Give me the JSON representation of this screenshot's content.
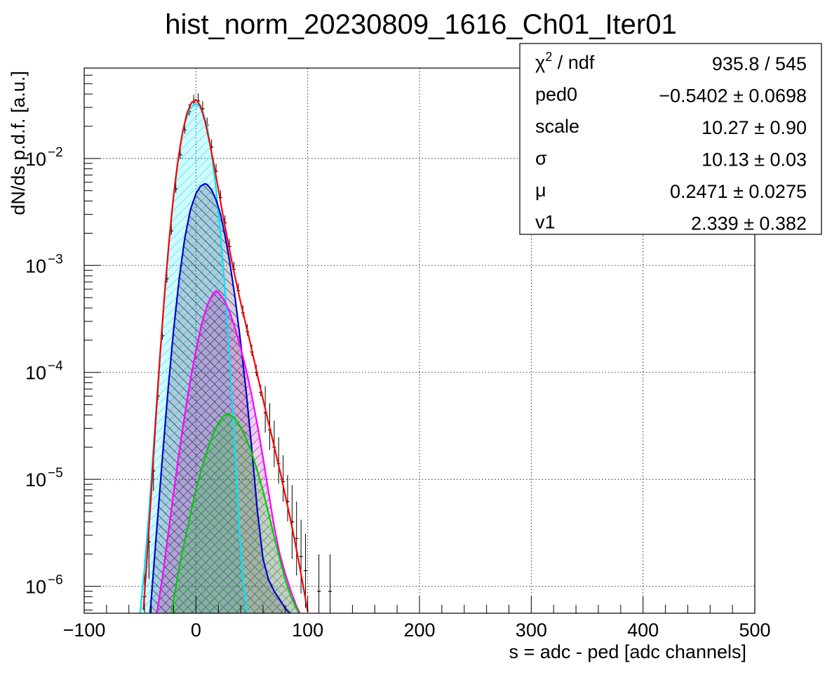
{
  "chart_data": {
    "type": "histogram",
    "title": "hist_norm_20230809_1616_Ch01_Iter01",
    "xlabel": "s = adc - ped [adc channels]",
    "ylabel": "dN/ds p.d.f. [a.u.]",
    "xlim": [
      -100,
      500
    ],
    "ylim": [
      5.6e-07,
      0.07
    ],
    "y_scale": "log",
    "grid": true,
    "x_ticks": [
      {
        "value": -100,
        "label": "−100"
      },
      {
        "value": 0,
        "label": "0"
      },
      {
        "value": 100,
        "label": "100"
      },
      {
        "value": 200,
        "label": "200"
      },
      {
        "value": 300,
        "label": "300"
      },
      {
        "value": 400,
        "label": "400"
      },
      {
        "value": 500,
        "label": "500"
      }
    ],
    "y_ticks": [
      {
        "value": 1e-06,
        "base": "10",
        "exp": "−6"
      },
      {
        "value": 1e-05,
        "base": "10",
        "exp": "−5"
      },
      {
        "value": 0.0001,
        "base": "10",
        "exp": "−4"
      },
      {
        "value": 0.001,
        "base": "10",
        "exp": "−3"
      },
      {
        "value": 0.01,
        "base": "10",
        "exp": "−2"
      }
    ],
    "histogram": {
      "color": "#000000",
      "x": [
        -46,
        -42,
        -38,
        -34,
        -30,
        -26,
        -22,
        -18,
        -14,
        -10,
        -6,
        -2,
        2,
        6,
        10,
        14,
        18,
        22,
        26,
        30,
        34,
        38,
        42,
        46,
        50,
        54,
        58,
        62,
        66,
        70,
        74,
        78,
        82,
        86,
        90,
        94,
        98,
        110,
        120
      ],
      "y": [
        8e-07,
        2.6e-06,
        1.2e-05,
        6e-05,
        0.00022,
        0.00075,
        0.0021,
        0.0052,
        0.0108,
        0.0185,
        0.0275,
        0.0335,
        0.0345,
        0.0292,
        0.0205,
        0.0128,
        0.0076,
        0.0043,
        0.0025,
        0.0015,
        0.00092,
        0.00058,
        0.00036,
        0.00024,
        0.000155,
        0.0001,
        6.5e-05,
        4.2e-05,
        2.9e-05,
        2e-05,
        1.4e-05,
        9.5e-06,
        6.2e-06,
        4e-06,
        2.8e-06,
        1.9e-06,
        1.4e-06,
        9e-07,
        9e-07
      ]
    },
    "series": [
      {
        "component": "total",
        "color": "#ff0000",
        "x": [
          -47,
          -44,
          -40,
          -36,
          -32,
          -28,
          -24,
          -20,
          -16,
          -12,
          -8,
          -4,
          0,
          4,
          8,
          12,
          16,
          20,
          24,
          28,
          32,
          36,
          40,
          44,
          48,
          52,
          56,
          60,
          64,
          68,
          72,
          76,
          80,
          84,
          88,
          92,
          96,
          100
        ],
        "y": [
          6e-07,
          1.7e-06,
          7.5e-06,
          3.5e-05,
          0.00015,
          0.00055,
          0.0017,
          0.0045,
          0.0097,
          0.0175,
          0.0265,
          0.0332,
          0.0355,
          0.031,
          0.0225,
          0.0145,
          0.0088,
          0.0052,
          0.003,
          0.0018,
          0.0011,
          0.0007,
          0.00045,
          0.0003,
          0.0002,
          0.00013,
          8.5e-05,
          5.6e-05,
          3.7e-05,
          2.5e-05,
          1.65e-05,
          1.1e-05,
          7e-06,
          4.5e-06,
          2.8e-06,
          1.7e-06,
          1e-06,
          5.8e-07
        ]
      },
      {
        "component": "pedestal",
        "color": "#00e5ff",
        "fill": "#00e5ff",
        "hatch": true,
        "x": [
          -50,
          -46,
          -42,
          -38,
          -34,
          -30,
          -26,
          -22,
          -18,
          -14,
          -10,
          -6,
          -2,
          0,
          2,
          6,
          10,
          14,
          18,
          22,
          26,
          30,
          34,
          38,
          42,
          46
        ],
        "y": [
          5.6e-07,
          1.5e-06,
          5e-06,
          2e-05,
          8e-05,
          0.00029,
          0.001,
          0.0029,
          0.0068,
          0.0135,
          0.0215,
          0.0285,
          0.0318,
          0.032,
          0.0316,
          0.0276,
          0.0198,
          0.0112,
          0.0052,
          0.00195,
          0.00059,
          0.000145,
          2.9e-05,
          4.6e-06,
          1.2e-06,
          5.6e-07
        ]
      },
      {
        "component": "first peak",
        "color": "#0000cc",
        "fill": "#000033",
        "hatch": true,
        "x": [
          -41,
          -38,
          -35,
          -30,
          -25,
          -20,
          -15,
          -10,
          -5,
          0,
          4,
          8,
          10,
          14,
          18,
          22,
          26,
          30,
          35,
          40,
          45,
          50,
          55,
          60,
          65,
          70,
          75,
          80,
          84
        ],
        "y": [
          5.6e-07,
          1.4e-06,
          3.5e-06,
          1.6e-05,
          6.8e-05,
          0.00025,
          0.00075,
          0.0018,
          0.0033,
          0.0047,
          0.0055,
          0.0058,
          0.0057,
          0.0051,
          0.0041,
          0.003,
          0.0019,
          0.00112,
          0.0005,
          0.00019,
          6.5e-05,
          1.9e-05,
          5e-06,
          1.8e-06,
          1.15e-06,
          9e-07,
          7.5e-07,
          6.2e-07,
          5.6e-07
        ]
      },
      {
        "component": "second peak",
        "color": "#ff00ff",
        "fill": "#990099",
        "hatch": true,
        "x": [
          -35,
          -30,
          -25,
          -20,
          -15,
          -10,
          -5,
          0,
          5,
          10,
          15,
          18,
          20,
          25,
          30,
          35,
          40,
          45,
          50,
          55,
          60,
          65,
          70,
          75,
          80,
          85,
          90,
          93
        ],
        "y": [
          5.6e-07,
          1.2e-06,
          3e-06,
          7.5e-06,
          1.8e-05,
          4e-05,
          8.5e-05,
          0.00016,
          0.00028,
          0.00042,
          0.00054,
          0.00058,
          0.00056,
          0.00048,
          0.00037,
          0.00026,
          0.00017,
          0.000105,
          6e-05,
          3.2e-05,
          1.6e-05,
          7.5e-06,
          3.6e-06,
          2e-06,
          1.3e-06,
          9e-07,
          6.5e-07,
          5.6e-07
        ]
      },
      {
        "component": "third peak",
        "color": "#00cc00",
        "fill": "#00cc00",
        "hatch": true,
        "x": [
          -22,
          -15,
          -10,
          -5,
          0,
          5,
          10,
          15,
          20,
          25,
          28,
          30,
          35,
          40,
          45,
          50,
          55,
          60,
          65,
          70,
          75,
          80,
          85,
          90,
          92
        ],
        "y": [
          5.6e-07,
          1.5e-06,
          2.7e-06,
          4.7e-06,
          8e-06,
          1.25e-05,
          1.85e-05,
          2.6e-05,
          3.35e-05,
          3.95e-05,
          4.1e-05,
          4.05e-05,
          3.7e-05,
          3.1e-05,
          2.4e-05,
          1.75e-05,
          1.2e-05,
          7.8e-06,
          4.8e-06,
          2.9e-06,
          1.8e-06,
          1.15e-06,
          8e-07,
          6.2e-07,
          5.6e-07
        ]
      }
    ]
  },
  "stats": {
    "rows": [
      {
        "label": "χ",
        "label_sup": "2",
        "label_rest": " / ndf",
        "value": "935.8 / 545"
      },
      {
        "label": "ped0",
        "value": "−0.5402 ± 0.0698"
      },
      {
        "label": "scale",
        "value": "10.27 ± 0.90"
      },
      {
        "label": "σ",
        "value": "10.13 ± 0.03"
      },
      {
        "label": "μ",
        "value": "0.2471 ± 0.0275"
      },
      {
        "label": "v1",
        "value": "2.339 ± 0.382"
      }
    ]
  }
}
